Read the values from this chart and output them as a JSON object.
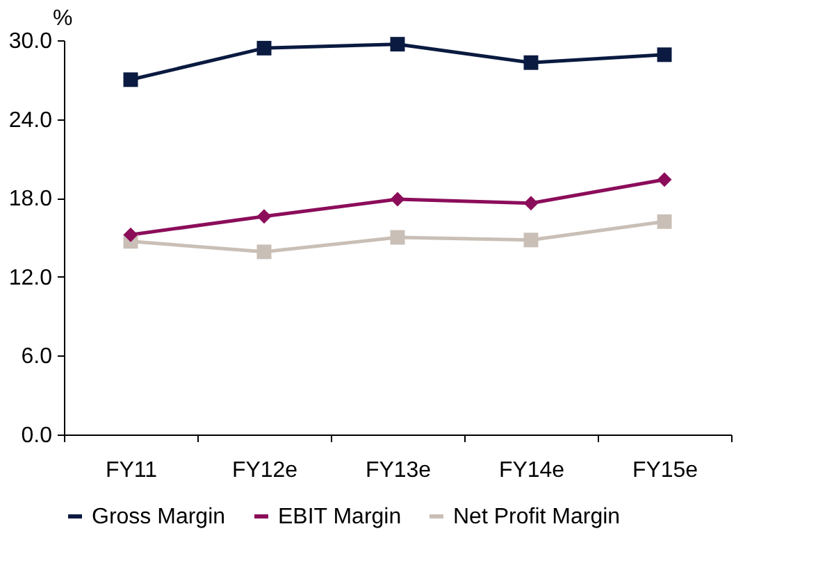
{
  "chart_data": {
    "type": "line",
    "ylabel": "%",
    "categories": [
      "FY11",
      "FY12e",
      "FY13e",
      "FY14e",
      "FY15e"
    ],
    "series": [
      {
        "name": "Gross Margin",
        "color": "#0a1a40",
        "marker": "square",
        "values": [
          27.0,
          29.4,
          29.7,
          28.3,
          28.9
        ]
      },
      {
        "name": "EBIT Margin",
        "color": "#8b0d5a",
        "marker": "diamond",
        "values": [
          15.2,
          16.6,
          17.9,
          17.6,
          19.4
        ]
      },
      {
        "name": "Net Profit Margin",
        "color": "#c9bfb6",
        "marker": "square",
        "values": [
          14.7,
          13.9,
          15.0,
          14.8,
          16.2
        ]
      }
    ],
    "ylim": [
      0,
      30
    ],
    "yticks": [
      {
        "value": 0,
        "label": "0.0"
      },
      {
        "value": 6,
        "label": "6.0"
      },
      {
        "value": 12,
        "label": "12.0"
      },
      {
        "value": 18,
        "label": "18.0"
      },
      {
        "value": 24,
        "label": "24.0"
      },
      {
        "value": 30,
        "label": "30.0"
      }
    ],
    "grid": false,
    "legend": "bottom",
    "line_style": "solid"
  }
}
